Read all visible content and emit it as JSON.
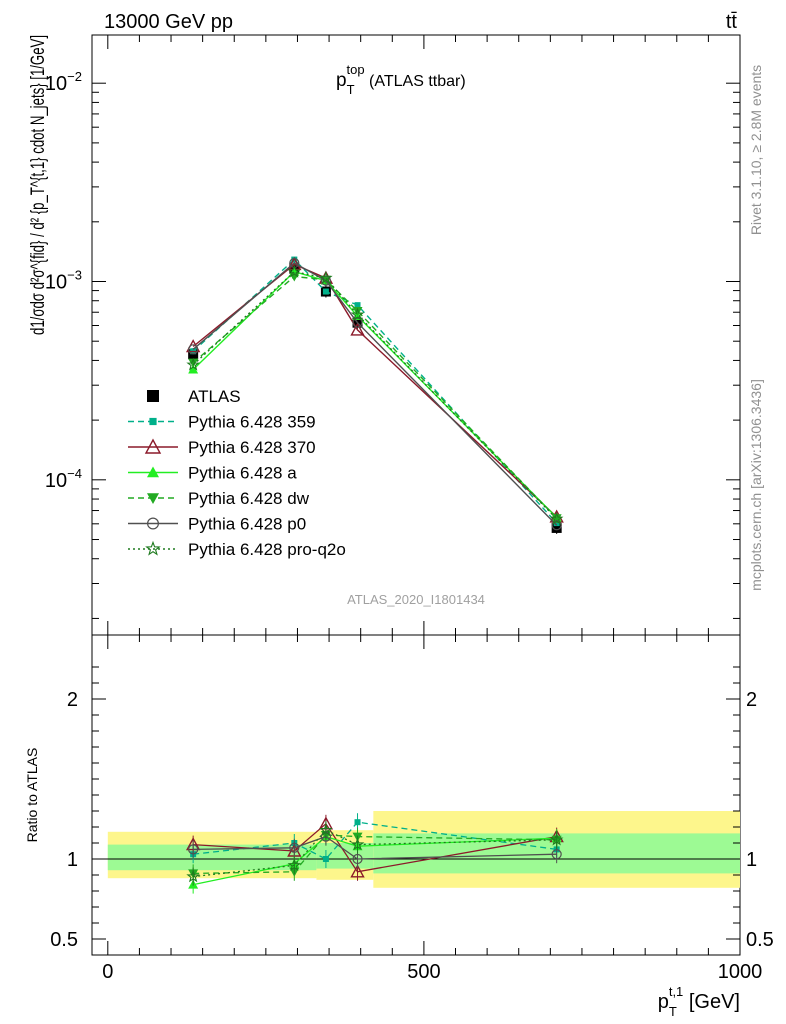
{
  "header": {
    "process": "13000 GeV pp",
    "final_state": "tt̄"
  },
  "side_labels": {
    "rivet": "Rivet 3.1.10, ≥ 2.8M events",
    "mcplots": "mcplots.cern.ch [arXiv:1306.3436]"
  },
  "chart_data": [
    {
      "panel": "main",
      "type": "line",
      "title": {
        "main": "p",
        "sup": "top",
        "sub": "T",
        "suffix": " (ATLAS ttbar)"
      },
      "ylabel": "d1/σdσ d²σ^{fid} / d² {p_T^{t,1} cdot N_jets} [1/GeV]",
      "y_scale": "log",
      "xlim": [
        -25,
        1000
      ],
      "ylim": [
        1.65e-05,
        0.0175
      ],
      "y_ticks": [
        {
          "value": 0.01,
          "base": "10",
          "exp": "−2"
        },
        {
          "value": 0.001,
          "base": "10",
          "exp": "−3"
        },
        {
          "value": 0.0001,
          "base": "10",
          "exp": "−4"
        }
      ],
      "analysis_id": "ATLAS_2020_I1801434",
      "x": [
        135,
        295,
        345,
        395,
        710
      ],
      "data_bins": [
        [
          50,
          270
        ],
        [
          270,
          330
        ],
        [
          330,
          420
        ],
        [
          420,
          500
        ],
        [
          500,
          1000
        ]
      ],
      "legend_position": "left-middle",
      "series": [
        {
          "name": "ATLAS",
          "color": "#000000",
          "marker": "square",
          "line": "none",
          "values": [
            0.00043,
            0.00116,
            0.00089,
            0.00062,
            5.72e-05
          ]
        },
        {
          "name": "Pythia 6.428 359",
          "color": "#00b08a",
          "marker": "small-square",
          "line": "dashed",
          "values": [
            0.000445,
            0.00129,
            0.00089,
            0.00076,
            6.05e-05
          ]
        },
        {
          "name": "Pythia 6.428 370",
          "color": "#8b1a2a",
          "marker": "open-triangle",
          "line": "solid",
          "values": [
            0.00047,
            0.00122,
            0.00104,
            0.00057,
            6.5e-05
          ]
        },
        {
          "name": "Pythia 6.428 a",
          "color": "#22ee22",
          "marker": "filled-triangle",
          "line": "solid",
          "values": [
            0.00036,
            0.00112,
            0.00101,
            0.00067,
            6.45e-05
          ]
        },
        {
          "name": "Pythia 6.428 dw",
          "color": "#22aa22",
          "marker": "filled-triangle-down",
          "line": "dashed",
          "values": [
            0.00039,
            0.00106,
            0.00102,
            0.00071,
            6.4e-05
          ]
        },
        {
          "name": "Pythia 6.428 p0",
          "color": "#505050",
          "marker": "open-circle",
          "line": "solid",
          "values": [
            0.000455,
            0.00124,
            0.00101,
            0.00062,
            5.9e-05
          ]
        },
        {
          "name": "Pythia 6.428 pro-q2o",
          "color": "#1e7a1e",
          "marker": "open-star",
          "line": "dotted",
          "values": [
            0.00038,
            0.00112,
            0.00104,
            0.00068,
            6.35e-05
          ]
        }
      ]
    },
    {
      "panel": "ratio",
      "type": "line",
      "ylabel": "Ratio to ATLAS",
      "xlabel": {
        "main": "p",
        "sub": "T",
        "sup": "t,1",
        "suffix": " [GeV]"
      },
      "xlim": [
        -25,
        1000
      ],
      "ylim": [
        0.4,
        2.4
      ],
      "x_ticks": [
        0,
        500,
        1000
      ],
      "y_ticks": [
        0.5,
        1,
        2
      ],
      "bands": [
        {
          "x": [
            0,
            270
          ],
          "stat": [
            0.93,
            1.09
          ],
          "total": [
            0.88,
            1.17
          ]
        },
        {
          "x": [
            270,
            330
          ],
          "stat": [
            0.93,
            1.09
          ],
          "total": [
            0.88,
            1.17
          ]
        },
        {
          "x": [
            330,
            420
          ],
          "stat": [
            0.94,
            1.1
          ],
          "total": [
            0.87,
            1.18
          ]
        },
        {
          "x": [
            420,
            1000
          ],
          "stat": [
            0.91,
            1.16
          ],
          "total": [
            0.82,
            1.3
          ]
        }
      ],
      "x": [
        135,
        295,
        345,
        395,
        710
      ],
      "series": [
        {
          "name": "Pythia 6.428 359",
          "values": [
            1.03,
            1.1,
            1.0,
            1.23,
            1.06
          ]
        },
        {
          "name": "Pythia 6.428 370",
          "values": [
            1.09,
            1.05,
            1.22,
            0.92,
            1.14
          ]
        },
        {
          "name": "Pythia 6.428 a",
          "values": [
            0.84,
            0.97,
            1.14,
            1.08,
            1.13
          ]
        },
        {
          "name": "Pythia 6.428 dw",
          "values": [
            0.91,
            0.92,
            1.15,
            1.14,
            1.12
          ]
        },
        {
          "name": "Pythia 6.428 p0",
          "values": [
            1.06,
            1.07,
            1.14,
            1.0,
            1.03
          ]
        },
        {
          "name": "Pythia 6.428 pro-q2o",
          "values": [
            0.89,
            0.96,
            1.18,
            1.09,
            1.12
          ]
        }
      ]
    }
  ]
}
